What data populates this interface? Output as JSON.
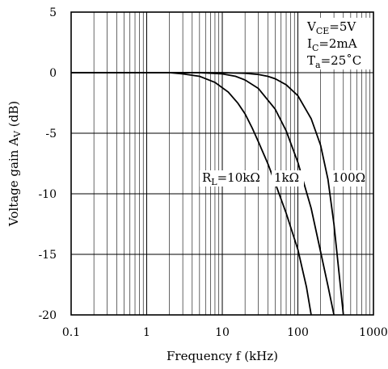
{
  "chart_data": {
    "type": "line",
    "xlabel": "Frequency f (kHz)",
    "ylabel": {
      "main": "Voltage gain A",
      "sub": "V",
      "unit": " (dB)"
    },
    "xscale": "log",
    "xlim": [
      0.1,
      1000
    ],
    "ylim": [
      -20,
      5
    ],
    "grid": true,
    "x_ticks": [
      {
        "value": 0.1,
        "label": "0.1"
      },
      {
        "value": 1,
        "label": "1"
      },
      {
        "value": 10,
        "label": "10"
      },
      {
        "value": 100,
        "label": "100"
      },
      {
        "value": 1000,
        "label": "1000"
      }
    ],
    "y_ticks": [
      {
        "value": 5,
        "label": "5"
      },
      {
        "value": 0,
        "label": "0"
      },
      {
        "value": -5,
        "label": "-5"
      },
      {
        "value": -10,
        "label": "-10"
      },
      {
        "value": -15,
        "label": "-15"
      },
      {
        "value": -20,
        "label": "-20"
      }
    ],
    "conditions": [
      {
        "main": "V",
        "sub": "CE",
        "rest": "=5V"
      },
      {
        "main": "I",
        "sub": "C",
        "rest": "=2mA"
      },
      {
        "main": "T",
        "sub": "a",
        "rest": "=25˚C"
      }
    ],
    "series": [
      {
        "label_main": "R",
        "label_sub": "L",
        "label_rest": "=10kΩ",
        "x": [
          0.1,
          1,
          2,
          3,
          5,
          8,
          12,
          16,
          20,
          25,
          30,
          40,
          50,
          70,
          100,
          130,
          150
        ],
        "y": [
          0,
          0,
          0,
          -0.1,
          -0.3,
          -0.8,
          -1.6,
          -2.5,
          -3.4,
          -4.6,
          -5.7,
          -7.5,
          -9.1,
          -11.6,
          -14.6,
          -17.7,
          -20
        ]
      },
      {
        "label_main": "",
        "label_sub": "",
        "label_rest": "1kΩ",
        "x": [
          0.1,
          1,
          5,
          10,
          15,
          20,
          30,
          50,
          70,
          100,
          150,
          200,
          250,
          300
        ],
        "y": [
          0,
          0,
          0,
          -0.1,
          -0.3,
          -0.6,
          -1.3,
          -3,
          -4.8,
          -7.4,
          -11.2,
          -14.8,
          -17.6,
          -20
        ]
      },
      {
        "label_main": "",
        "label_sub": "",
        "label_rest": "100Ω",
        "x": [
          0.1,
          1,
          10,
          20,
          30,
          40,
          50,
          70,
          100,
          150,
          200,
          250,
          300,
          350,
          400
        ],
        "y": [
          0,
          0,
          0,
          -0.05,
          -0.15,
          -0.3,
          -0.5,
          -1,
          -1.9,
          -3.8,
          -6,
          -8.8,
          -12.5,
          -16.5,
          -20
        ]
      }
    ]
  }
}
